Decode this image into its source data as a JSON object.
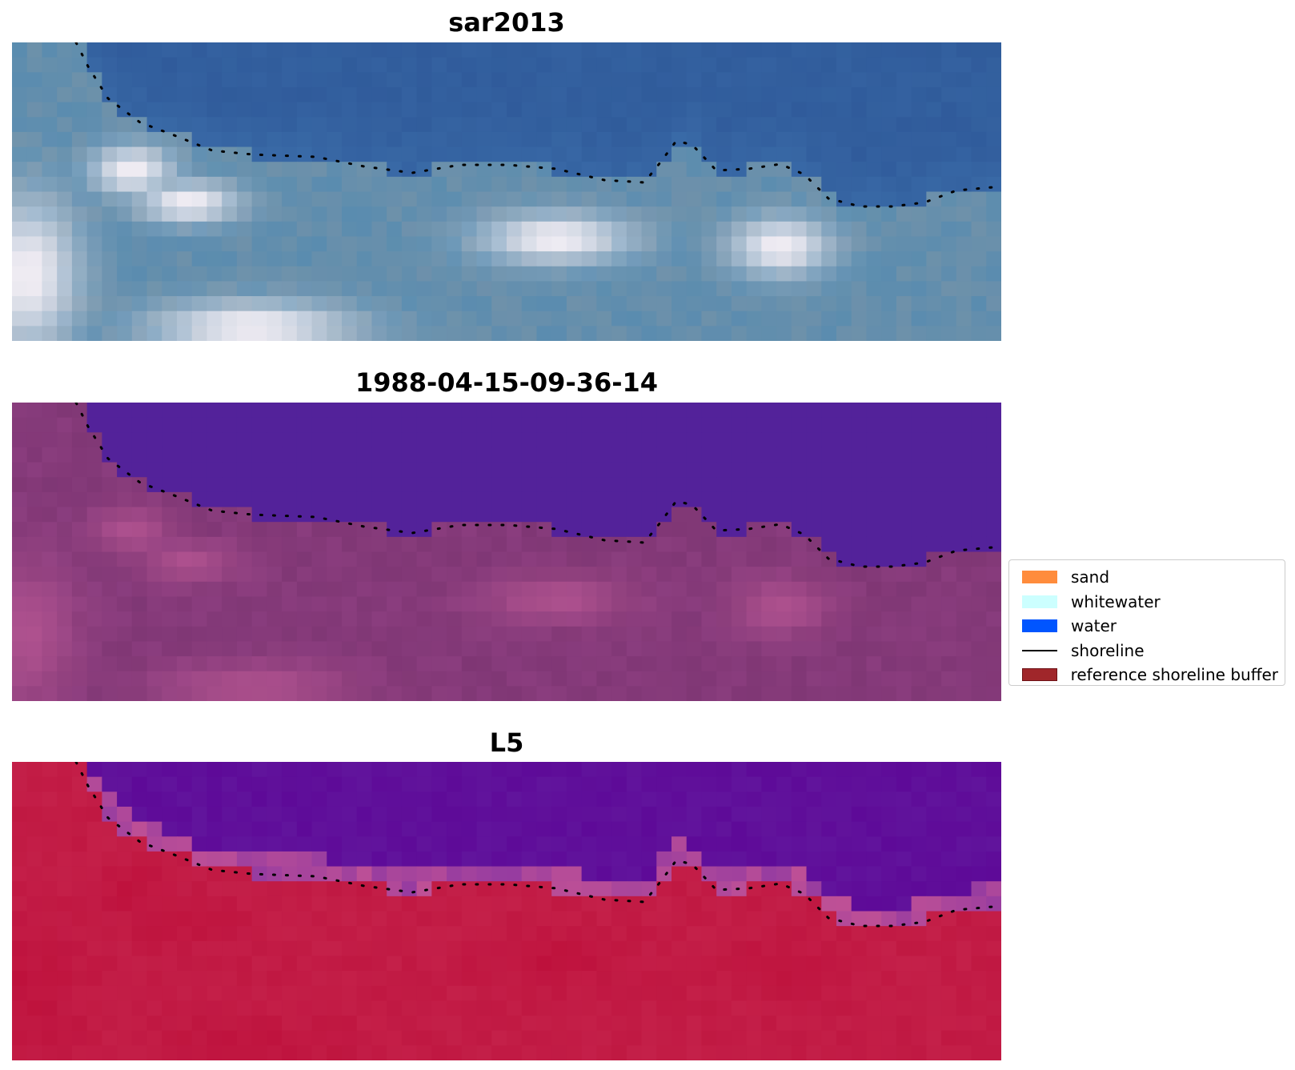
{
  "panels": [
    {
      "title": "sar2013",
      "kind": "rgb"
    },
    {
      "title": "1988-04-15-09-36-14",
      "kind": "classified"
    },
    {
      "title": "L5",
      "kind": "index"
    }
  ],
  "legend": {
    "items": [
      {
        "label": "sand",
        "color": "#ff8c3c",
        "type": "patch"
      },
      {
        "label": "whitewater",
        "color": "#ccffff",
        "type": "patch"
      },
      {
        "label": "water",
        "color": "#0055ff",
        "type": "patch"
      },
      {
        "label": "shoreline",
        "color": "#000000",
        "type": "line"
      },
      {
        "label": "reference shoreline buffer",
        "color": "#a0262a",
        "type": "patch"
      }
    ]
  },
  "colors": {
    "deep_water_blue": "#2c5596",
    "classified_water": "#53229a",
    "classified_land": "#8a3d7e",
    "index_water": "#5e0a98",
    "index_land": "#c01842"
  }
}
